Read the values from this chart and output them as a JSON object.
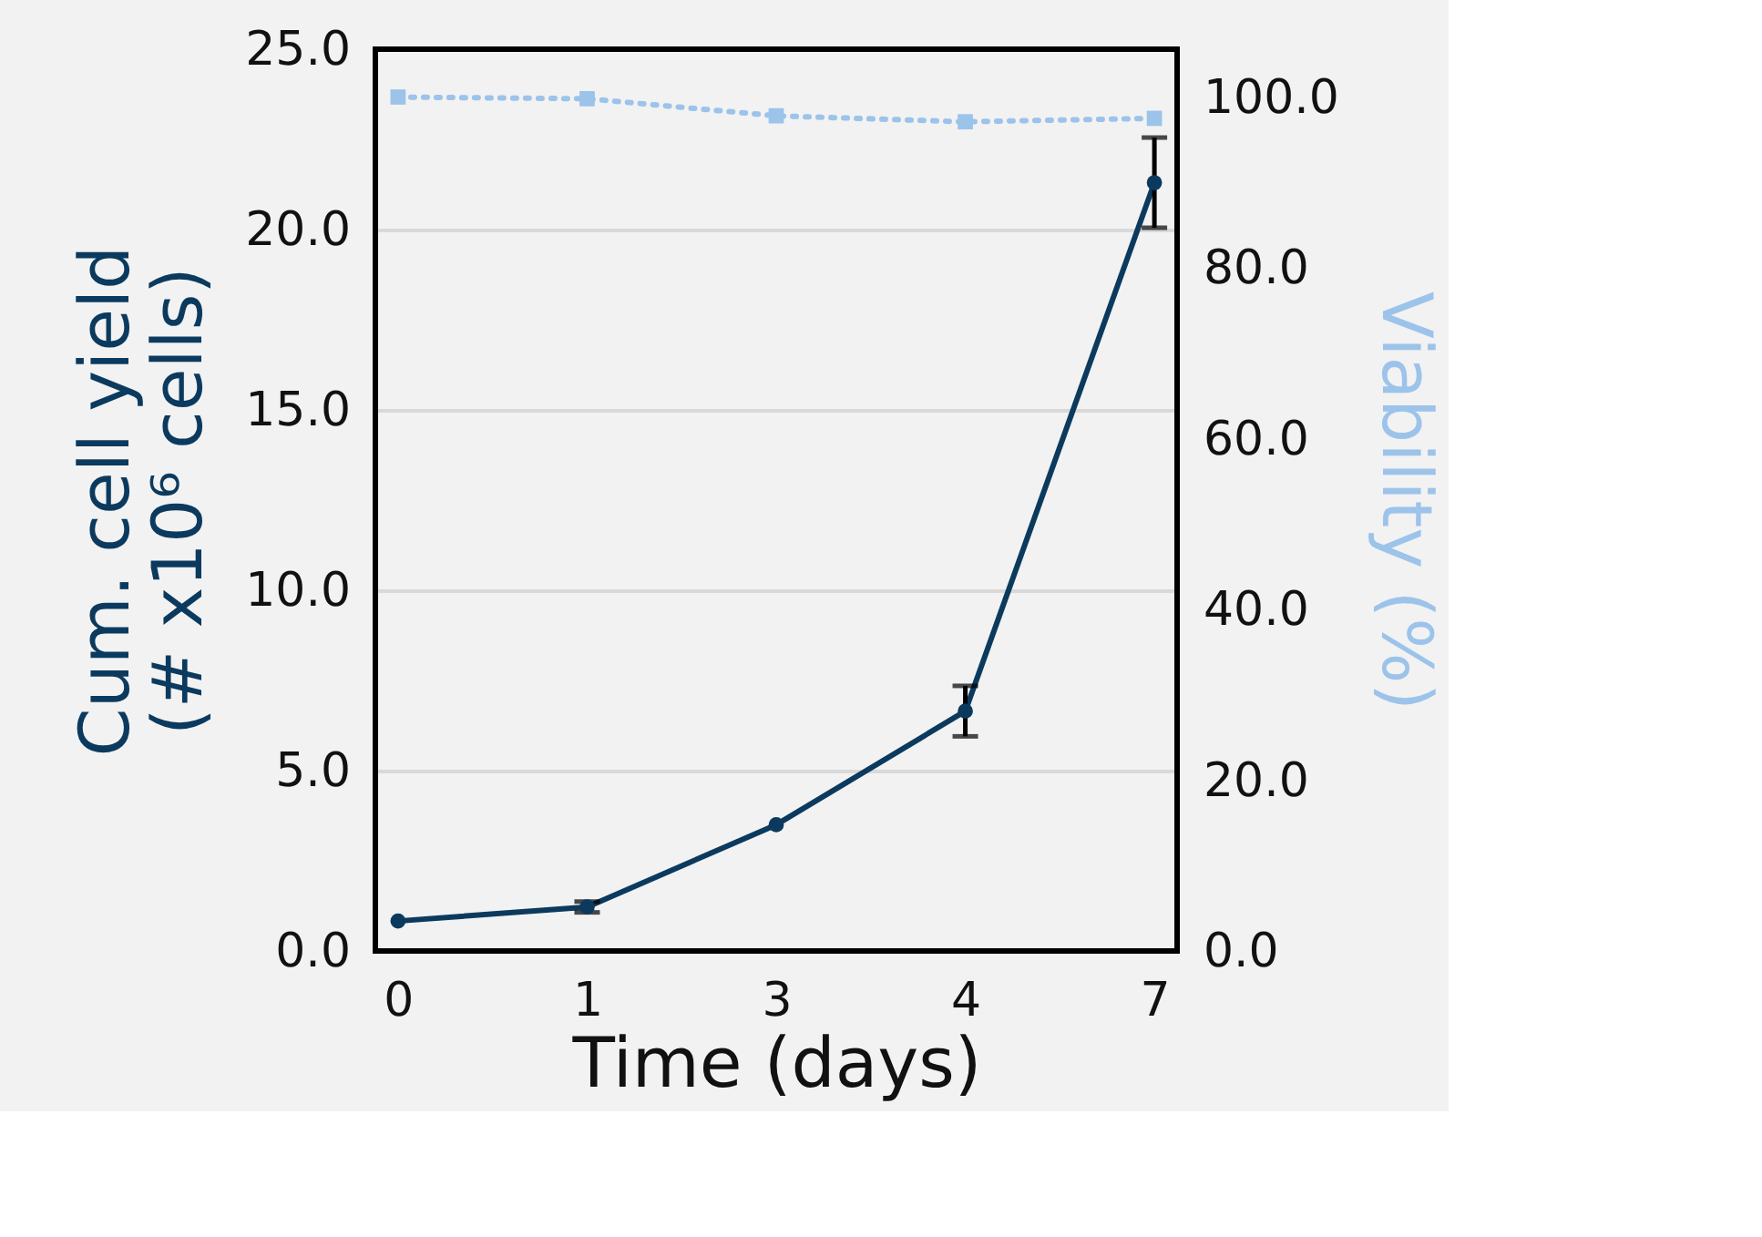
{
  "chart_data": {
    "type": "line",
    "xlabel": "Time (days)",
    "ylabel": "Cum. cell yield\n(# x10⁶ cells)",
    "y2label": "Viability (%)",
    "categories": [
      "0",
      "1",
      "3",
      "4",
      "7"
    ],
    "series": [
      {
        "name": null,
        "color": "#0b3a5e",
        "values": [
          0.83,
          1.22,
          3.5,
          6.65,
          21.3
        ],
        "errors": [
          null,
          0.15,
          null,
          0.7,
          1.25
        ],
        "marker": "circle",
        "line_style": "solid"
      },
      {
        "name": null,
        "axis": "y2",
        "color": "#9cc3ea",
        "values": [
          100,
          99.8,
          97.8,
          97.1,
          97.5
        ],
        "marker": "square",
        "line_style": "dotted"
      }
    ],
    "ylim": [
      0,
      25
    ],
    "yticks": [
      {
        "value": 0,
        "label": "0.0"
      },
      {
        "value": 5,
        "label": "5.0"
      },
      {
        "value": 10,
        "label": "10.0"
      },
      {
        "value": 15,
        "label": "15.0"
      },
      {
        "value": 20,
        "label": "20.0"
      },
      {
        "value": 25,
        "label": "25.0"
      }
    ],
    "y2lim": [
      0,
      105.6
    ],
    "y2ticks": [
      {
        "value": 0,
        "label": "0.0"
      },
      {
        "value": 20,
        "label": "20.0"
      },
      {
        "value": 40,
        "label": "40.0"
      },
      {
        "value": 60,
        "label": "60.0"
      },
      {
        "value": 80,
        "label": "80.0"
      },
      {
        "value": 100,
        "label": "100.0"
      }
    ],
    "grid": "y"
  }
}
